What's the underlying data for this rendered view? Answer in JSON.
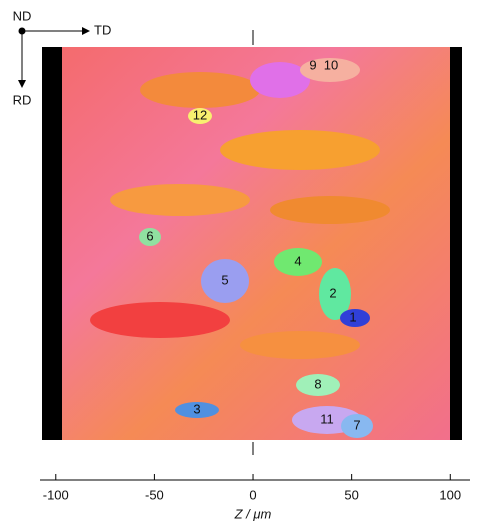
{
  "orientation": {
    "nd": "ND",
    "td": "TD",
    "rd": "RD"
  },
  "chart_data": {
    "type": "ebsd-map",
    "xlabel": "Z / μm",
    "xlim": [
      -108,
      110
    ],
    "xticks": [
      -100,
      -50,
      0,
      50,
      100
    ],
    "grain_labels": [
      "9",
      "10",
      "12",
      "6",
      "4",
      "5",
      "2",
      "1",
      "8",
      "3",
      "11",
      "7"
    ]
  }
}
